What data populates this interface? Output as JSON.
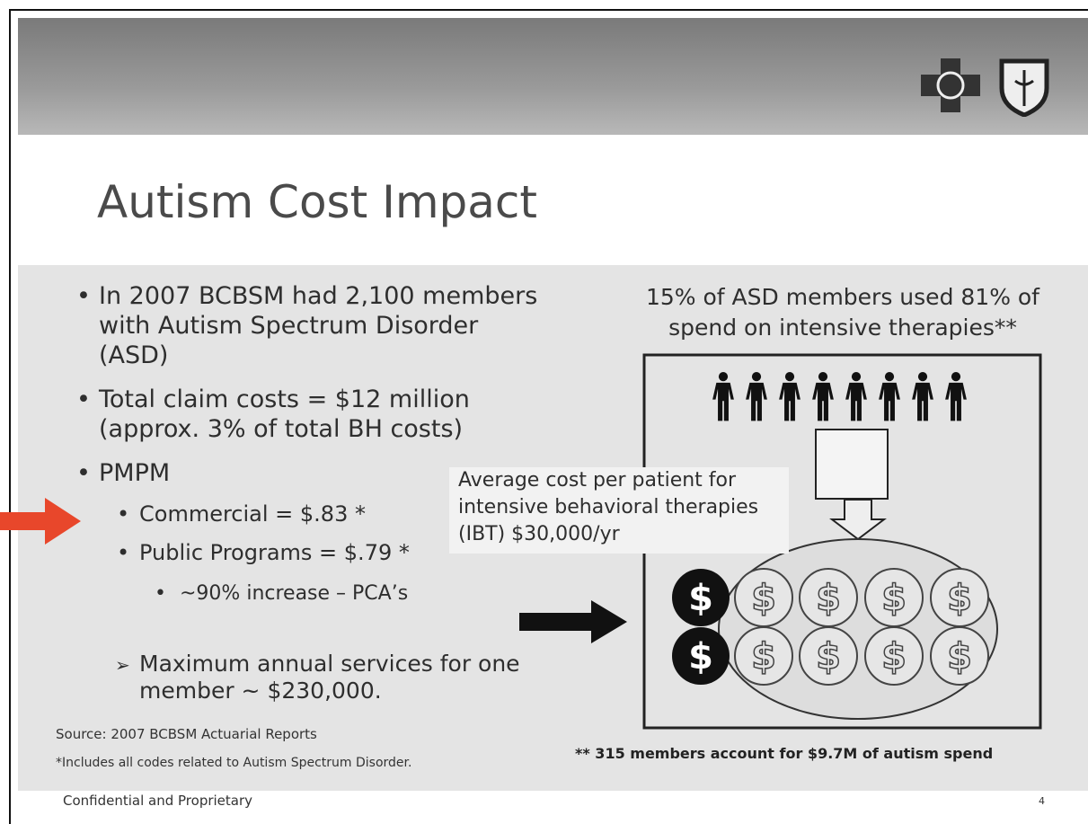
{
  "slide": {
    "title": "Autism Cost Impact",
    "bullets": [
      {
        "lines": [
          "In 2007 BCBSM had 2,100 members",
          "with Autism Spectrum Disorder",
          "(ASD)"
        ]
      },
      {
        "lines": [
          "Total claim costs = $12 million",
          "(approx. 3% of total BH costs)"
        ]
      },
      {
        "lines": [
          "PMPM"
        ]
      }
    ],
    "sub_bullets": [
      "Commercial = $.83 *",
      "Public Programs = $.79 *"
    ],
    "sub_sub_bullet": "~90% increase – PCA’s",
    "arrow_bullet": [
      "Maximum annual services for one",
      "member ~ $230,000."
    ],
    "source": "Source:  2007 BCBSM Actuarial Reports",
    "footnote": "*Includes all codes related to Autism Spectrum Disorder.",
    "graphic": {
      "heading": [
        "15% of ASD members used 81% of",
        "spend on intensive therapies**"
      ],
      "callout": [
        "Average cost per patient for",
        "intensive behavioral therapies",
        "(IBT) $30,000/yr"
      ],
      "coin_symbol": "$",
      "note": "** 315 members account for $9.7M of autism spend"
    },
    "footer": "Confidential and Proprietary",
    "page_number": "4"
  }
}
